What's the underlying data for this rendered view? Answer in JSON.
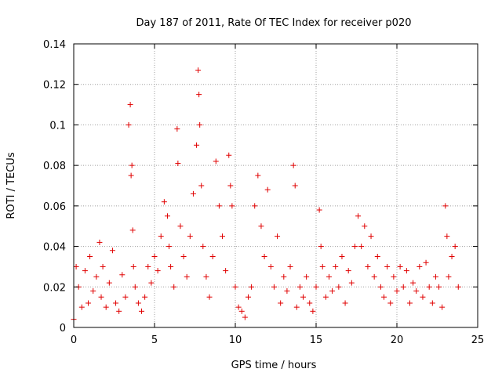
{
  "chart_data": {
    "type": "scatter",
    "title": "Day 187 of 2011, Rate Of TEC Index for receiver p020",
    "xlabel": "GPS time / hours",
    "ylabel": "ROTI / TECUs",
    "xlim": [
      0,
      25
    ],
    "ylim": [
      0,
      0.14
    ],
    "x_ticks": [
      "0",
      "5",
      "10",
      "15",
      "20",
      "25"
    ],
    "y_ticks": [
      "0",
      "0.02",
      "0.04",
      "0.06",
      "0.08",
      "0.1",
      "0.12",
      "0.14"
    ],
    "x_tick_values": [
      0,
      5,
      10,
      15,
      20,
      25
    ],
    "y_tick_values": [
      0,
      0.02,
      0.04,
      0.06,
      0.08,
      0.1,
      0.12,
      0.14
    ],
    "grid": true,
    "marker": "+",
    "color": "#e00000",
    "x": [
      0.0,
      0.15,
      0.3,
      0.5,
      0.7,
      0.9,
      1.0,
      1.2,
      1.4,
      1.6,
      1.7,
      1.8,
      2.0,
      2.2,
      2.4,
      2.6,
      2.8,
      3.0,
      3.2,
      3.4,
      3.5,
      3.55,
      3.6,
      3.65,
      3.7,
      3.8,
      4.0,
      4.2,
      4.4,
      4.6,
      4.8,
      5.0,
      5.2,
      5.4,
      5.6,
      5.8,
      5.9,
      6.0,
      6.2,
      6.4,
      6.45,
      6.6,
      6.8,
      7.0,
      7.2,
      7.4,
      7.6,
      7.7,
      7.75,
      7.8,
      7.9,
      8.0,
      8.2,
      8.4,
      8.6,
      8.8,
      9.0,
      9.2,
      9.4,
      9.6,
      9.7,
      9.8,
      10.0,
      10.2,
      10.4,
      10.6,
      10.8,
      11.0,
      11.2,
      11.4,
      11.6,
      11.8,
      12.0,
      12.2,
      12.4,
      12.6,
      12.8,
      13.0,
      13.2,
      13.4,
      13.6,
      13.7,
      13.8,
      14.0,
      14.2,
      14.4,
      14.6,
      14.8,
      15.0,
      15.2,
      15.3,
      15.4,
      15.6,
      15.8,
      16.0,
      16.2,
      16.4,
      16.6,
      16.8,
      17.0,
      17.2,
      17.4,
      17.6,
      17.8,
      18.0,
      18.2,
      18.4,
      18.6,
      18.8,
      19.0,
      19.2,
      19.4,
      19.6,
      19.8,
      20.0,
      20.2,
      20.4,
      20.6,
      20.8,
      21.0,
      21.2,
      21.4,
      21.6,
      21.8,
      22.0,
      22.2,
      22.4,
      22.6,
      22.8,
      23.0,
      23.1,
      23.2,
      23.4,
      23.6,
      23.8
    ],
    "y": [
      0.004,
      0.03,
      0.02,
      0.01,
      0.028,
      0.012,
      0.035,
      0.018,
      0.025,
      0.042,
      0.015,
      0.03,
      0.01,
      0.022,
      0.038,
      0.012,
      0.008,
      0.026,
      0.015,
      0.1,
      0.11,
      0.075,
      0.08,
      0.048,
      0.03,
      0.02,
      0.012,
      0.008,
      0.015,
      0.03,
      0.022,
      0.035,
      0.028,
      0.045,
      0.062,
      0.055,
      0.04,
      0.03,
      0.02,
      0.098,
      0.081,
      0.05,
      0.035,
      0.025,
      0.045,
      0.066,
      0.09,
      0.127,
      0.115,
      0.1,
      0.07,
      0.04,
      0.025,
      0.015,
      0.035,
      0.082,
      0.06,
      0.045,
      0.028,
      0.085,
      0.07,
      0.06,
      0.02,
      0.01,
      0.008,
      0.005,
      0.015,
      0.02,
      0.06,
      0.075,
      0.05,
      0.035,
      0.068,
      0.03,
      0.02,
      0.045,
      0.012,
      0.025,
      0.018,
      0.03,
      0.08,
      0.07,
      0.01,
      0.02,
      0.015,
      0.025,
      0.012,
      0.008,
      0.02,
      0.058,
      0.04,
      0.03,
      0.015,
      0.025,
      0.018,
      0.03,
      0.02,
      0.035,
      0.012,
      0.028,
      0.022,
      0.04,
      0.055,
      0.04,
      0.05,
      0.03,
      0.045,
      0.025,
      0.035,
      0.02,
      0.015,
      0.03,
      0.012,
      0.025,
      0.018,
      0.03,
      0.02,
      0.028,
      0.012,
      0.022,
      0.018,
      0.03,
      0.015,
      0.032,
      0.02,
      0.012,
      0.025,
      0.02,
      0.01,
      0.06,
      0.045,
      0.025,
      0.035,
      0.04,
      0.02
    ]
  }
}
